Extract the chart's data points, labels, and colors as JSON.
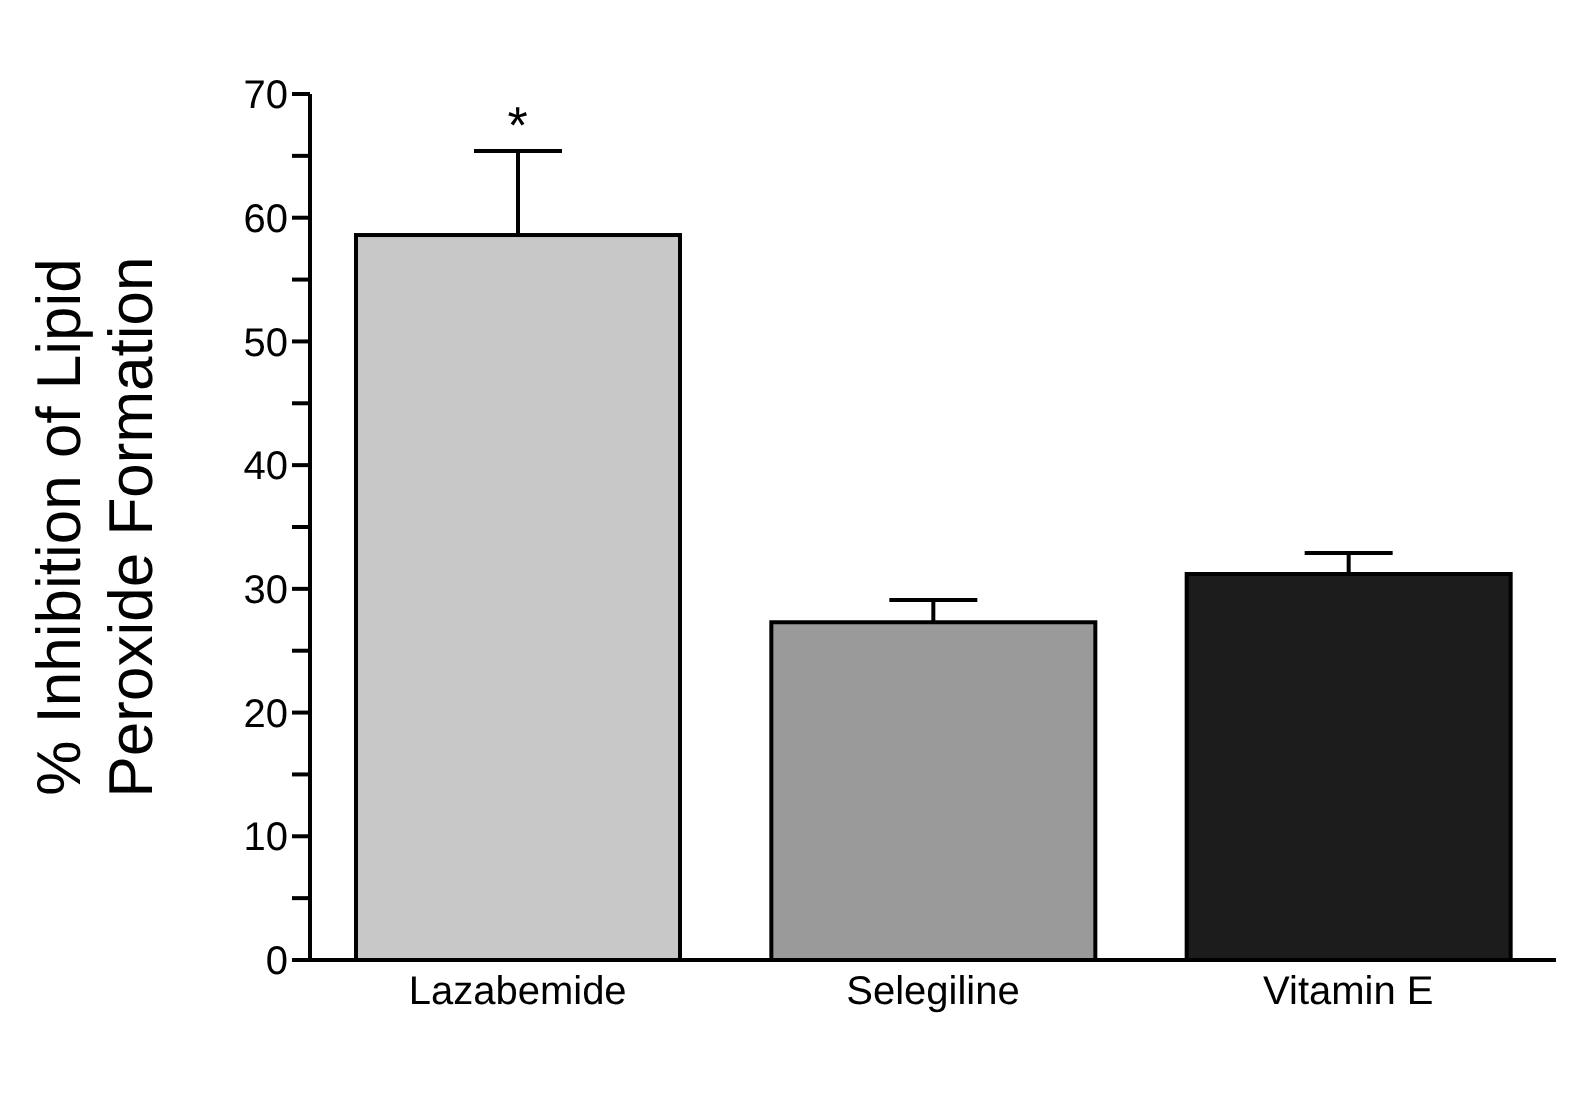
{
  "chart_data": {
    "type": "bar",
    "ylabel": "% Inhibition of Lipid Peroxide Formation",
    "categories": [
      "Lazabemide",
      "Selegiline",
      "Vitamin E"
    ],
    "values": [
      58.6,
      27.3,
      31.2
    ],
    "colors": [
      "#c8c8c8",
      "#9a9a9a",
      "#1c1c1c"
    ],
    "errors": [
      [
        58.6,
        65.4
      ],
      [
        27.3,
        29.1
      ],
      [
        31.2,
        32.9
      ]
    ],
    "ylim": [
      0,
      70
    ],
    "yticks": [
      0,
      {
        "value": 5,
        "label": null
      },
      10,
      {
        "value": 15,
        "label": null
      },
      20,
      {
        "value": 25,
        "label": null
      },
      30,
      {
        "value": 35,
        "label": null
      },
      40,
      {
        "value": 45,
        "label": null
      },
      50,
      {
        "value": 55,
        "label": null
      },
      60,
      {
        "value": 65,
        "label": null
      },
      70
    ],
    "grid": false,
    "legend": false,
    "annotations": [
      {
        "text": "*",
        "x": "Lazabemide",
        "y": 65.4
      }
    ]
  }
}
